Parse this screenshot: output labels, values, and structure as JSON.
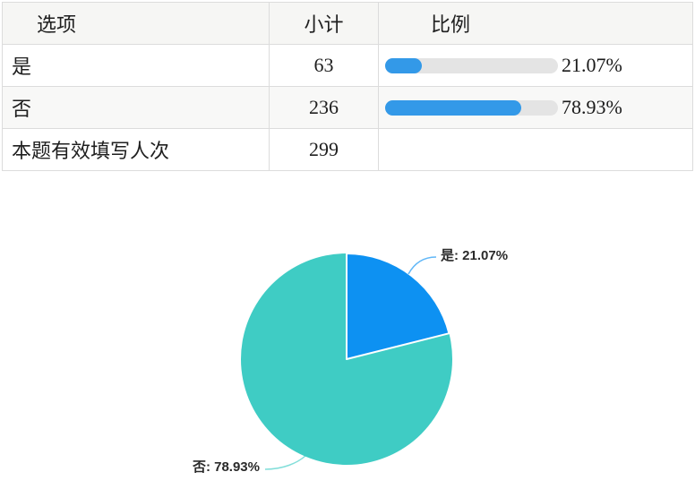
{
  "table": {
    "headers": {
      "option": "选项",
      "count": "小计",
      "ratio": "比例"
    },
    "rows": [
      {
        "option": "是",
        "count": "63",
        "percent": 21.07,
        "percent_label": "21.07%"
      },
      {
        "option": "否",
        "count": "236",
        "percent": 78.93,
        "percent_label": "78.93%"
      },
      {
        "option": "本题有效填写人次",
        "count": "299"
      }
    ],
    "bar_color": "#3399e8",
    "track_color": "#e4e4e4"
  },
  "chart_data": {
    "type": "pie",
    "title": "",
    "categories": [
      "是",
      "否"
    ],
    "values": [
      21.07,
      78.93
    ],
    "counts": [
      63,
      236
    ],
    "labels": [
      "是: 21.07%",
      "否: 78.93%"
    ],
    "colors": [
      "#0d91f2",
      "#3fccc4"
    ],
    "start_angle": "top",
    "direction": "clockwise",
    "legend_position": "none"
  }
}
